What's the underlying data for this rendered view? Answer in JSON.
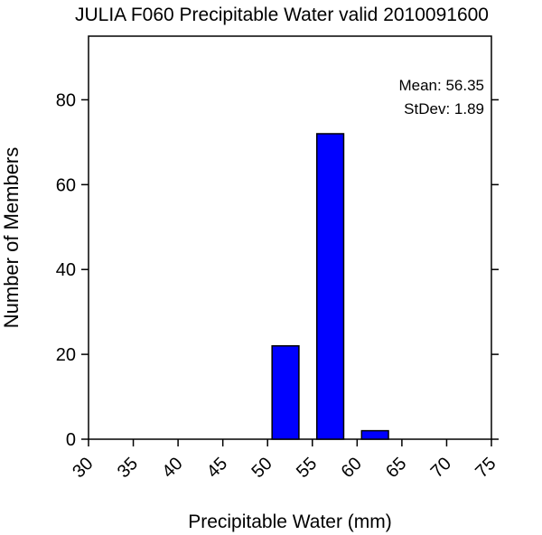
{
  "chart_data": {
    "type": "bar",
    "title": "JULIA F060 Precipitable Water valid 2010091600",
    "xlabel": "Precipitable Water (mm)",
    "ylabel": "Number of Members",
    "xlim": [
      30,
      75
    ],
    "ylim": [
      0,
      95
    ],
    "xticks": [
      30,
      35,
      40,
      45,
      50,
      55,
      60,
      65,
      70,
      75
    ],
    "yticks": [
      0,
      20,
      40,
      60,
      80
    ],
    "bins": [
      {
        "start": 50.5,
        "end": 53.5,
        "value": 22
      },
      {
        "start": 55.5,
        "end": 58.5,
        "value": 72
      },
      {
        "start": 60.5,
        "end": 63.5,
        "value": 2
      }
    ],
    "bar_color": "#0000ff",
    "annotations": {
      "mean": "Mean: 56.35",
      "stdev": "StDev: 1.89"
    },
    "grid": false
  }
}
